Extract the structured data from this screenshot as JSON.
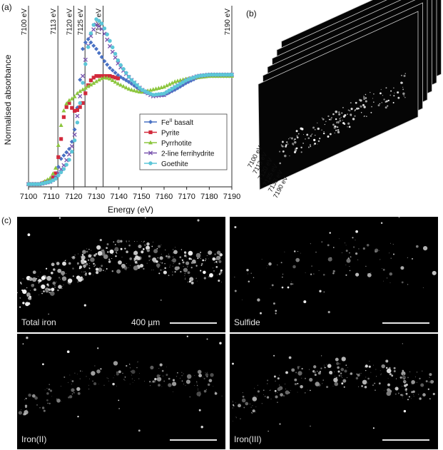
{
  "panels": {
    "a": "(a)",
    "b": "(b)",
    "c": "(c)"
  },
  "chart_data": {
    "type": "scatter",
    "xlabel": "Energy (eV)",
    "ylabel": "Normalised absorbance",
    "xlim": [
      7100,
      7190
    ],
    "xticks": [
      7100,
      7110,
      7120,
      7130,
      7140,
      7150,
      7160,
      7170,
      7180,
      7190
    ],
    "vlines": [
      {
        "x": 7100,
        "label": "7100 eV"
      },
      {
        "x": 7113,
        "label": "7113 eV"
      },
      {
        "x": 7120,
        "label": "7120 eV"
      },
      {
        "x": 7125,
        "label": "7125 eV"
      },
      {
        "x": 7133,
        "label": "7133 eV"
      },
      {
        "x": 7190,
        "label": "7190 eV"
      }
    ],
    "legend_position": "center-right",
    "series": [
      {
        "name": "Fe",
        "name_sup": "II",
        "name_suffix": " basalt",
        "color": "#4a72c4",
        "marker": "diamond",
        "x": [
          7100,
          7105,
          7110,
          7112,
          7114,
          7116,
          7118,
          7120,
          7122,
          7124,
          7126,
          7128,
          7130,
          7132,
          7134,
          7136,
          7138,
          7140,
          7145,
          7150,
          7155,
          7160,
          7165,
          7170,
          7175,
          7180,
          7185,
          7190
        ],
        "y": [
          0.0,
          0.0,
          0.02,
          0.05,
          0.18,
          0.22,
          0.26,
          0.35,
          0.62,
          1.0,
          1.08,
          1.04,
          1.0,
          0.95,
          0.9,
          0.86,
          0.83,
          0.8,
          0.75,
          0.69,
          0.66,
          0.66,
          0.7,
          0.75,
          0.79,
          0.8,
          0.8,
          0.8
        ]
      },
      {
        "name": "Pyrite",
        "color": "#d22a3c",
        "marker": "square",
        "x": [
          7100,
          7105,
          7110,
          7112,
          7114,
          7116,
          7118,
          7120,
          7122,
          7124,
          7126,
          7128,
          7130,
          7132,
          7134,
          7136,
          7138,
          7140
        ],
        "y": [
          0.0,
          0.0,
          0.03,
          0.08,
          0.28,
          0.55,
          0.6,
          0.54,
          0.55,
          0.6,
          0.72,
          0.78,
          0.8,
          0.8,
          0.8,
          0.8,
          0.79,
          0.78
        ]
      },
      {
        "name": "Pyrrhotite",
        "color": "#8cc63e",
        "marker": "triangle",
        "x": [
          7100,
          7105,
          7110,
          7112,
          7114,
          7116,
          7118,
          7120,
          7122,
          7124,
          7126,
          7128,
          7130,
          7132,
          7134,
          7136,
          7140,
          7145,
          7150,
          7155,
          7160,
          7165,
          7170,
          7175,
          7180,
          7185,
          7190
        ],
        "y": [
          0.0,
          0.0,
          0.05,
          0.12,
          0.4,
          0.58,
          0.62,
          0.64,
          0.68,
          0.7,
          0.72,
          0.74,
          0.76,
          0.78,
          0.79,
          0.78,
          0.74,
          0.7,
          0.68,
          0.7,
          0.72,
          0.76,
          0.78,
          0.79,
          0.8,
          0.8,
          0.8
        ]
      },
      {
        "name": "2-line ferrihydrite",
        "color": "#7b57b0",
        "marker": "x",
        "x": [
          7100,
          7105,
          7110,
          7112,
          7114,
          7116,
          7118,
          7120,
          7122,
          7124,
          7126,
          7128,
          7130,
          7132,
          7134,
          7136,
          7138,
          7140,
          7145,
          7150,
          7155,
          7160,
          7165,
          7170,
          7175,
          7180,
          7185,
          7190
        ],
        "y": [
          0.0,
          0.0,
          0.02,
          0.05,
          0.1,
          0.15,
          0.22,
          0.32,
          0.55,
          0.8,
          1.0,
          1.12,
          1.18,
          1.16,
          1.1,
          1.02,
          0.95,
          0.88,
          0.78,
          0.7,
          0.65,
          0.66,
          0.72,
          0.77,
          0.8,
          0.81,
          0.81,
          0.81
        ]
      },
      {
        "name": "Goethite",
        "color": "#5cc6d8",
        "marker": "circle",
        "x": [
          7100,
          7105,
          7110,
          7112,
          7114,
          7116,
          7118,
          7120,
          7122,
          7124,
          7126,
          7128,
          7130,
          7132,
          7134,
          7136,
          7138,
          7140,
          7145,
          7150,
          7155,
          7160,
          7165,
          7170,
          7175,
          7180,
          7185,
          7190
        ],
        "y": [
          0.0,
          0.0,
          0.02,
          0.04,
          0.08,
          0.12,
          0.18,
          0.28,
          0.5,
          0.75,
          0.98,
          1.15,
          1.22,
          1.2,
          1.14,
          1.06,
          0.98,
          0.9,
          0.78,
          0.7,
          0.66,
          0.67,
          0.72,
          0.77,
          0.8,
          0.81,
          0.81,
          0.81
        ]
      }
    ]
  },
  "stack": {
    "energy_labels": [
      "7100 eV",
      "7113 eV",
      "7120 eV",
      "7125 eV",
      "7133 eV",
      "7190 eV"
    ]
  },
  "maps": [
    {
      "label": "Total iron",
      "scale_text": "400 µm"
    },
    {
      "label": "Sulfide"
    },
    {
      "label": "Iron(II)"
    },
    {
      "label": "Iron(III)"
    }
  ]
}
